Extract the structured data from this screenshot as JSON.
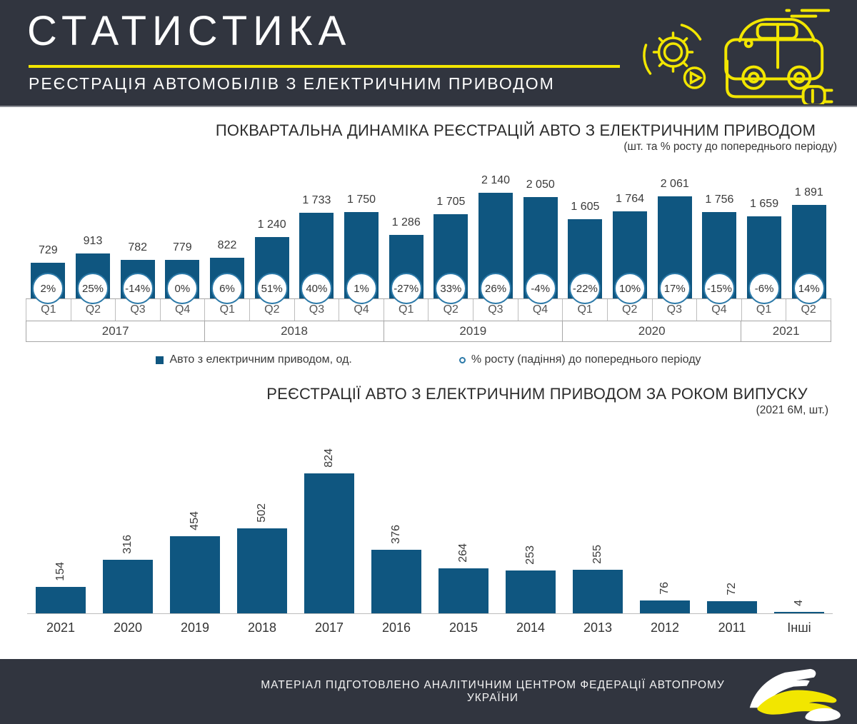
{
  "header": {
    "title": "СТАТИСТИКА",
    "subtitle": "РЕЄСТРАЦІЯ АВТОМОБІЛІВ З ЕЛЕКТРИЧНИМ ПРИВОДОМ"
  },
  "colors": {
    "dark": "#31353F",
    "yellow": "#F2E600",
    "bar": "#0F5680",
    "circle_border": "#2B79A8"
  },
  "chart_data": [
    {
      "type": "bar",
      "title": "ПОКВАРТАЛЬНА ДИНАМІКА РЕЄСТРАЦІЙ АВТО З ЕЛЕКТРИЧНИМ ПРИВОДОМ",
      "subtitle": "(шт. та % росту до попереднього періоду)",
      "categories": [
        "Q1",
        "Q2",
        "Q3",
        "Q4",
        "Q1",
        "Q2",
        "Q3",
        "Q4",
        "Q1",
        "Q2",
        "Q3",
        "Q4",
        "Q1",
        "Q2",
        "Q3",
        "Q4",
        "Q1",
        "Q2"
      ],
      "year_groups": [
        {
          "label": "2017",
          "span": 4
        },
        {
          "label": "2018",
          "span": 4
        },
        {
          "label": "2019",
          "span": 4
        },
        {
          "label": "2020",
          "span": 4
        },
        {
          "label": "2021",
          "span": 2
        }
      ],
      "series": [
        {
          "name": "Авто з електричним приводом, од.",
          "values": [
            729,
            913,
            782,
            779,
            822,
            1240,
            1733,
            1750,
            1286,
            1705,
            2140,
            2050,
            1605,
            1764,
            2061,
            1756,
            1659,
            1891
          ]
        },
        {
          "name": "% росту (падіння) до попереднього періоду",
          "values": [
            "2%",
            "25%",
            "-14%",
            "0%",
            "6%",
            "51%",
            "40%",
            "1%",
            "-27%",
            "33%",
            "26%",
            "-4%",
            "-22%",
            "10%",
            "17%",
            "-15%",
            "-6%",
            "14%"
          ]
        }
      ],
      "ylim": [
        0,
        2140
      ],
      "grid": false,
      "legend_position": "bottom",
      "bar_color": "#0F5680"
    },
    {
      "type": "bar",
      "title": "РЕЄСТРАЦІЇ АВТО З ЕЛЕКТРИЧНИМ ПРИВОДОМ ЗА РОКОМ ВИПУСКУ",
      "subtitle": "(2021 6М, шт.)",
      "categories": [
        "2021",
        "2020",
        "2019",
        "2018",
        "2017",
        "2016",
        "2015",
        "2014",
        "2013",
        "2012",
        "2011",
        "Інші"
      ],
      "values": [
        154,
        316,
        454,
        502,
        824,
        376,
        264,
        253,
        255,
        76,
        72,
        4
      ],
      "ylim": [
        0,
        824
      ],
      "grid": false,
      "legend_position": "none",
      "bar_color": "#0F5680"
    }
  ],
  "legend": {
    "items": [
      {
        "label": "Авто з електричним приводом,  од.",
        "marker": "square"
      },
      {
        "label": "% росту  (падіння) до попереднього періоду",
        "marker": "circle"
      }
    ]
  },
  "footer": {
    "text": "МАТЕРІАЛ ПІДГОТОВЛЕНО АНАЛІТИЧНИМ ЦЕНТРОМ ФЕДЕРАЦІЇ АВТОПРОМУ УКРАЇНИ"
  }
}
